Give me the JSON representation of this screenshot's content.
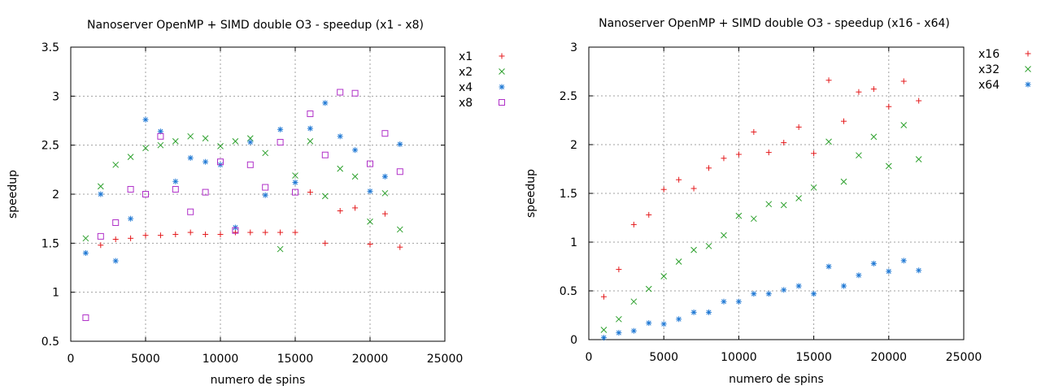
{
  "chart_data": [
    {
      "type": "scatter",
      "title": "Nanoserver OpenMP + SIMD double O3 - speedup (x1 - x8)",
      "xlabel": "numero de spins",
      "ylabel": "speedup",
      "xlim": [
        0,
        25000
      ],
      "ylim": [
        0.5,
        3.5
      ],
      "xticks": [
        "0",
        "5000",
        "10000",
        "15000",
        "20000",
        "25000"
      ],
      "yticks": [
        "0.5",
        "1",
        "1.5",
        "2",
        "2.5",
        "3",
        "3.5"
      ],
      "grid": true,
      "legend_position": "outside-right",
      "series": [
        {
          "name": "x1",
          "marker": "plus",
          "color": "#e41a1c",
          "x": [
            2000,
            3000,
            4000,
            5000,
            6000,
            7000,
            8000,
            9000,
            10000,
            11000,
            12000,
            13000,
            14000,
            15000,
            16000,
            17000,
            18000,
            19000,
            20000,
            21000,
            22000
          ],
          "y": [
            1.48,
            1.54,
            1.55,
            1.58,
            1.58,
            1.59,
            1.61,
            1.59,
            1.59,
            1.61,
            1.61,
            1.61,
            1.61,
            1.61,
            2.02,
            1.5,
            1.83,
            1.86,
            1.49,
            1.8,
            1.46
          ]
        },
        {
          "name": "x2",
          "marker": "cross",
          "color": "#2ca02c",
          "x": [
            1000,
            2000,
            3000,
            4000,
            5000,
            6000,
            7000,
            8000,
            9000,
            10000,
            11000,
            12000,
            13000,
            14000,
            15000,
            16000,
            17000,
            18000,
            19000,
            20000,
            21000,
            22000
          ],
          "y": [
            1.55,
            2.08,
            2.3,
            2.38,
            2.47,
            2.5,
            2.54,
            2.59,
            2.57,
            2.49,
            2.54,
            2.57,
            2.42,
            1.44,
            2.19,
            2.54,
            1.98,
            2.26,
            2.18,
            1.72,
            2.01,
            1.64
          ]
        },
        {
          "name": "x4",
          "marker": "star",
          "color": "#1f78d4",
          "x": [
            1000,
            2000,
            3000,
            4000,
            5000,
            6000,
            7000,
            8000,
            9000,
            10000,
            11000,
            12000,
            13000,
            14000,
            15000,
            16000,
            17000,
            18000,
            19000,
            20000,
            21000,
            22000
          ],
          "y": [
            1.4,
            2.0,
            1.32,
            1.75,
            2.76,
            2.64,
            2.13,
            2.37,
            2.33,
            2.3,
            1.66,
            2.53,
            1.99,
            2.66,
            2.12,
            2.67,
            2.93,
            2.59,
            2.45,
            2.03,
            2.18,
            2.51
          ]
        },
        {
          "name": "x8",
          "marker": "square",
          "color": "#b030c8",
          "x": [
            1000,
            2000,
            3000,
            4000,
            5000,
            6000,
            7000,
            8000,
            9000,
            10000,
            11000,
            12000,
            13000,
            14000,
            15000,
            16000,
            17000,
            18000,
            19000,
            20000,
            21000,
            22000
          ],
          "y": [
            0.74,
            1.57,
            1.71,
            2.05,
            2.0,
            2.59,
            2.05,
            1.82,
            2.02,
            2.33,
            1.63,
            2.3,
            2.07,
            2.53,
            2.02,
            2.82,
            2.4,
            3.04,
            3.03,
            2.31,
            2.62,
            2.23
          ]
        }
      ]
    },
    {
      "type": "scatter",
      "title": "Nanoserver OpenMP + SIMD double O3 - speedup (x16 - x64)",
      "xlabel": "numero de spins",
      "ylabel": "speedup",
      "xlim": [
        0,
        25000
      ],
      "ylim": [
        0,
        3
      ],
      "xticks": [
        "0",
        "5000",
        "10000",
        "15000",
        "20000",
        "25000"
      ],
      "yticks": [
        "0",
        "0.5",
        "1",
        "1.5",
        "2",
        "2.5",
        "3"
      ],
      "grid": true,
      "legend_position": "outside-right",
      "series": [
        {
          "name": "x16",
          "marker": "plus",
          "color": "#e41a1c",
          "x": [
            1000,
            2000,
            3000,
            4000,
            5000,
            6000,
            7000,
            8000,
            9000,
            10000,
            11000,
            12000,
            13000,
            14000,
            15000,
            16000,
            17000,
            18000,
            19000,
            20000,
            21000,
            22000
          ],
          "y": [
            0.44,
            0.72,
            1.18,
            1.28,
            1.54,
            1.64,
            1.55,
            1.76,
            1.86,
            1.9,
            2.13,
            1.92,
            2.02,
            2.18,
            1.91,
            2.66,
            2.24,
            2.54,
            2.57,
            2.39,
            2.65,
            2.45
          ]
        },
        {
          "name": "x32",
          "marker": "cross",
          "color": "#2ca02c",
          "x": [
            1000,
            2000,
            3000,
            4000,
            5000,
            6000,
            7000,
            8000,
            9000,
            10000,
            11000,
            12000,
            13000,
            14000,
            15000,
            16000,
            17000,
            18000,
            19000,
            20000,
            21000,
            22000
          ],
          "y": [
            0.1,
            0.21,
            0.39,
            0.52,
            0.65,
            0.8,
            0.92,
            0.96,
            1.07,
            1.27,
            1.24,
            1.39,
            1.38,
            1.45,
            1.56,
            2.03,
            1.62,
            1.89,
            2.08,
            1.78,
            2.2,
            1.85
          ]
        },
        {
          "name": "x64",
          "marker": "star",
          "color": "#1f78d4",
          "x": [
            1000,
            2000,
            3000,
            4000,
            5000,
            6000,
            7000,
            8000,
            9000,
            10000,
            11000,
            12000,
            13000,
            14000,
            15000,
            16000,
            17000,
            18000,
            19000,
            20000,
            21000,
            22000
          ],
          "y": [
            0.02,
            0.07,
            0.09,
            0.17,
            0.16,
            0.21,
            0.28,
            0.28,
            0.39,
            0.39,
            0.47,
            0.47,
            0.51,
            0.55,
            0.47,
            0.75,
            0.55,
            0.66,
            0.78,
            0.7,
            0.81,
            0.71
          ]
        }
      ]
    }
  ]
}
